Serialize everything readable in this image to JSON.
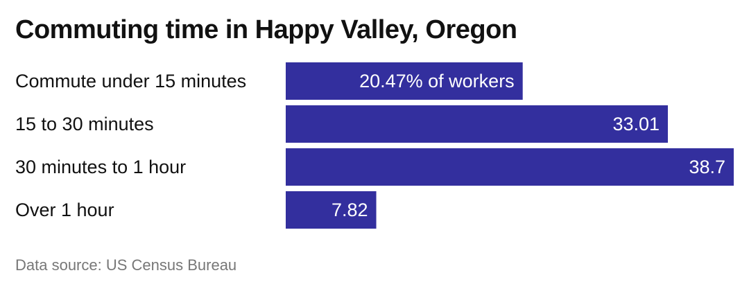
{
  "title": "Commuting time in Happy Valley, Oregon",
  "source": "Data source: US Census Bureau",
  "bar_color": "#332f9e",
  "label_color": "#ffffff",
  "chart_data": {
    "type": "bar",
    "orientation": "horizontal",
    "title": "Commuting time in Happy Valley, Oregon",
    "categories": [
      "Commute under 15 minutes",
      "15 to 30 minutes",
      "30 minutes to 1 hour",
      "Over 1 hour"
    ],
    "values": [
      20.47,
      33.01,
      38.7,
      7.82
    ],
    "data_labels": [
      "20.47% of workers",
      "33.01",
      "38.7",
      "7.82"
    ],
    "xlabel": "",
    "ylabel": "",
    "xlim": [
      0,
      38.7
    ],
    "grid": false,
    "legend": "none"
  }
}
